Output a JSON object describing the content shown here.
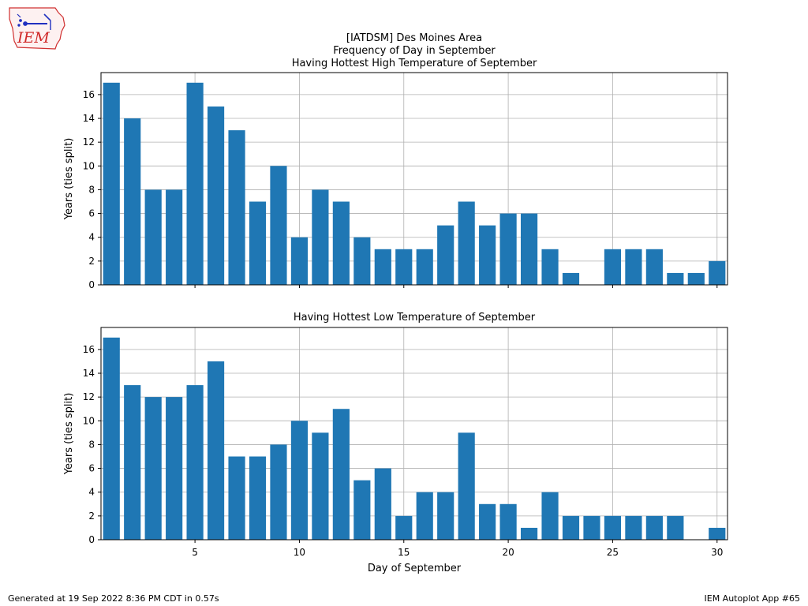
{
  "logo": {
    "text": "IEM"
  },
  "titles": {
    "line1": "[IATDSM] Des Moines Area",
    "line2": "Frequency of Day in September",
    "line3": "Having Hottest High Temperature of September"
  },
  "footer": {
    "left": "Generated at 19 Sep 2022 8:36 PM CDT in 0.57s",
    "right": "IEM Autoplot App #65"
  },
  "colors": {
    "bar": "#1f77b4",
    "grid": "#b0b0b0"
  },
  "chart_data": [
    {
      "type": "bar",
      "title": "Having Hottest High Temperature of September",
      "xlabel": "",
      "ylabel": "Years (ties split)",
      "x": [
        1,
        2,
        3,
        4,
        5,
        6,
        7,
        8,
        9,
        10,
        11,
        12,
        13,
        14,
        15,
        16,
        17,
        18,
        19,
        20,
        21,
        22,
        23,
        24,
        25,
        26,
        27,
        28,
        29,
        30
      ],
      "values": [
        17,
        14,
        8,
        8,
        17,
        15,
        13,
        7,
        10,
        4,
        8,
        7,
        4,
        3,
        3,
        3,
        5,
        7,
        5,
        6,
        6,
        3,
        1,
        0,
        3,
        3,
        3,
        1,
        1,
        2
      ],
      "xlim": [
        0.5,
        30.5
      ],
      "ylim": [
        0,
        17.85
      ],
      "xticks": [
        5,
        10,
        15,
        20,
        25,
        30
      ],
      "yticks": [
        0,
        2,
        4,
        6,
        8,
        10,
        12,
        14,
        16
      ],
      "grid": true
    },
    {
      "type": "bar",
      "title": "Having Hottest Low Temperature of September",
      "xlabel": "Day of September",
      "ylabel": "Years (ties split)",
      "x": [
        1,
        2,
        3,
        4,
        5,
        6,
        7,
        8,
        9,
        10,
        11,
        12,
        13,
        14,
        15,
        16,
        17,
        18,
        19,
        20,
        21,
        22,
        23,
        24,
        25,
        26,
        27,
        28,
        29,
        30
      ],
      "values": [
        17,
        13,
        12,
        12,
        13,
        15,
        7,
        7,
        8,
        10,
        9,
        11,
        5,
        6,
        2,
        4,
        4,
        9,
        3,
        3,
        1,
        4,
        2,
        2,
        2,
        2,
        2,
        2,
        0,
        1
      ],
      "xlim": [
        0.5,
        30.5
      ],
      "ylim": [
        0,
        17.85
      ],
      "xticks": [
        5,
        10,
        15,
        20,
        25,
        30
      ],
      "yticks": [
        0,
        2,
        4,
        6,
        8,
        10,
        12,
        14,
        16
      ],
      "grid": true
    }
  ]
}
